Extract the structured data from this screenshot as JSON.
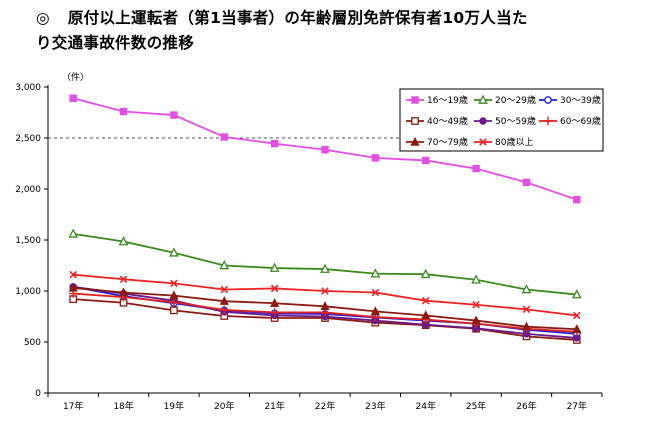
{
  "heading": {
    "mark": "◎",
    "line1": "原付以上運転者（第1当事者）の年齢層別免許保有者10万人当た",
    "line2": "り交通事故件数の推移"
  },
  "chart_data": {
    "type": "line",
    "title": "原付以上運転者（第1当事者）の年齢層別免許保有者10万人当たり交通事故件数の推移",
    "unit_label": "（件）",
    "xlabel": "",
    "ylabel": "（件）",
    "categories": [
      "17年",
      "18年",
      "19年",
      "20年",
      "21年",
      "22年",
      "23年",
      "24年",
      "25年",
      "26年",
      "27年"
    ],
    "ylim": [
      0,
      3000
    ],
    "yticks": [
      0,
      500,
      1000,
      1500,
      2000,
      2500,
      3000
    ],
    "ytick_labels": [
      "0",
      "500",
      "1,000",
      "1,500",
      "2,000",
      "2,500",
      "3,000"
    ],
    "reference_line": 2500,
    "legend_position": "top-right",
    "series": [
      {
        "name": "16～19歳",
        "color": "#e34ee3",
        "marker": "square",
        "values": [
          2890,
          2760,
          2725,
          2510,
          2445,
          2385,
          2305,
          2280,
          2200,
          2065,
          1895
        ]
      },
      {
        "name": "20～29歳",
        "color": "#3c8a1e",
        "marker": "triangle-open",
        "values": [
          1560,
          1485,
          1375,
          1250,
          1225,
          1215,
          1170,
          1165,
          1110,
          1015,
          965
        ]
      },
      {
        "name": "30～39歳",
        "color": "#1f1fe0",
        "marker": "circle-open",
        "values": [
          1040,
          950,
          880,
          810,
          780,
          775,
          740,
          710,
          680,
          620,
          580
        ]
      },
      {
        "name": "40～49歳",
        "color": "#8b1a10",
        "marker": "square-open",
        "values": [
          920,
          885,
          810,
          755,
          735,
          735,
          690,
          665,
          630,
          555,
          520
        ]
      },
      {
        "name": "50～59歳",
        "color": "#6a1a8a",
        "marker": "circle",
        "values": [
          1040,
          975,
          905,
          795,
          760,
          750,
          710,
          670,
          635,
          580,
          540
        ]
      },
      {
        "name": "60～69歳",
        "color": "#e0201c",
        "marker": "plus",
        "values": [
          975,
          940,
          890,
          815,
          790,
          790,
          745,
          720,
          680,
          630,
          600
        ]
      },
      {
        "name": "70～79歳",
        "color": "#8b1a10",
        "marker": "triangle",
        "values": [
          1030,
          985,
          955,
          900,
          880,
          850,
          800,
          760,
          710,
          650,
          625
        ]
      },
      {
        "name": "80歳以上",
        "color": "#ee2222",
        "marker": "x",
        "values": [
          1160,
          1115,
          1075,
          1015,
          1025,
          1000,
          985,
          905,
          865,
          820,
          760
        ]
      }
    ]
  }
}
